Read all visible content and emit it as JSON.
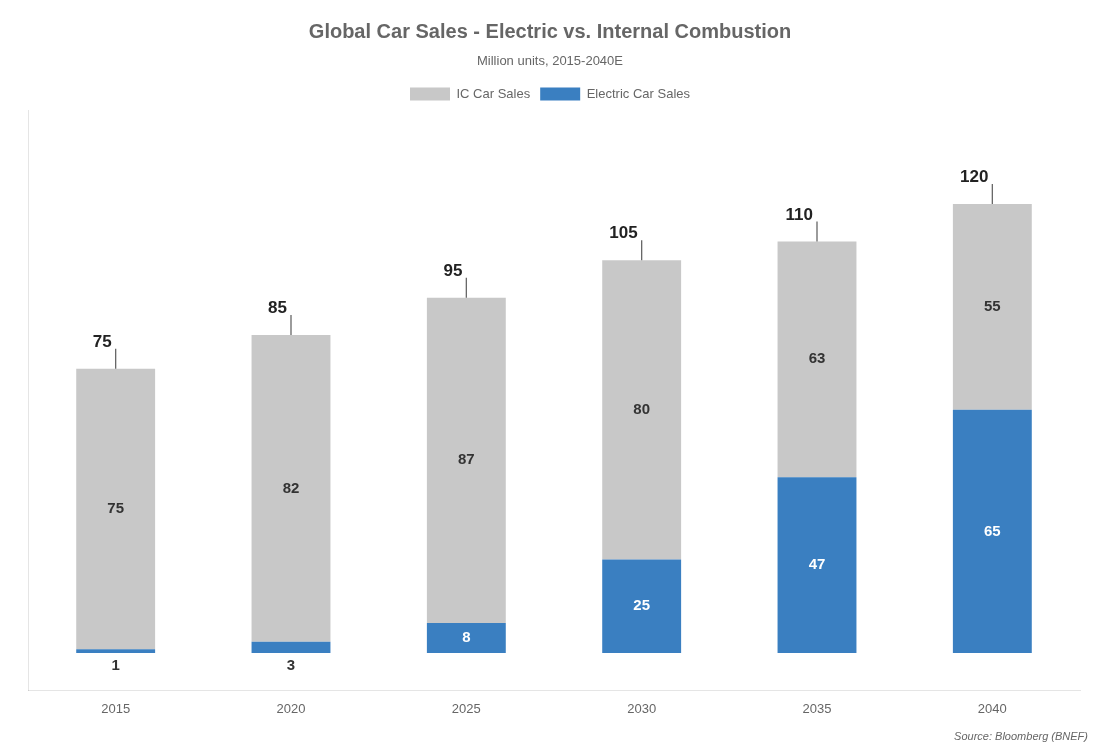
{
  "chart_data": {
    "type": "bar",
    "title": "Global Car Sales - Electric vs. Internal Combustion",
    "subtitle": "Million units, 2015-2040E",
    "source": "Source: Bloomberg (BNEF)",
    "categories": [
      "2015",
      "2020",
      "2025",
      "2030",
      "2035",
      "2040"
    ],
    "series": [
      {
        "name": "Electric Car Sales",
        "color": "#3a7fc1",
        "values": [
          1,
          3,
          8,
          25,
          47,
          65
        ]
      },
      {
        "name": "IC Car Sales",
        "color": "#c8c8c8",
        "values": [
          75,
          82,
          87,
          80,
          63,
          55
        ]
      }
    ],
    "totals": [
      75,
      85,
      95,
      105,
      110,
      120
    ],
    "stacked": true,
    "data_labels": true,
    "ylim": [
      -10,
      145
    ],
    "grid": false,
    "legend": "top",
    "tick_labels": "x"
  }
}
